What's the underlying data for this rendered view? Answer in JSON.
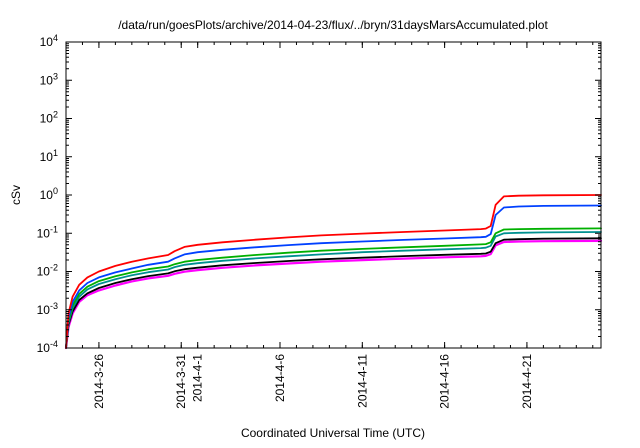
{
  "chart_data": {
    "type": "line",
    "title": "/data/run/goesPlots/archive/2014-04-23/flux/../bryn/31daysMarsAccumulated.plot",
    "xlabel": "Coordinated Universal Time (UTC)",
    "ylabel": "cSv",
    "y_scale": "log",
    "ylim_exponents": [
      -4,
      4
    ],
    "y_tick_base": "10",
    "y_tick_exponents": [
      4,
      3,
      2,
      1,
      0,
      -1,
      -2,
      -3,
      -4
    ],
    "x_domain_days": [
      0,
      32.5
    ],
    "x_ticks": [
      {
        "day": 2,
        "label": "2014-3-26"
      },
      {
        "day": 7,
        "label": "2014-3-31"
      },
      {
        "day": 8,
        "label": "2014-4-1"
      },
      {
        "day": 13,
        "label": "2014-4-6"
      },
      {
        "day": 18,
        "label": "2014-4-11"
      },
      {
        "day": 23,
        "label": "2014-4-16"
      },
      {
        "day": 28,
        "label": "2014-4-21"
      }
    ],
    "grid": false,
    "legend": "none",
    "x_days": [
      0,
      0.15,
      0.4,
      0.8,
      1.3,
      2,
      3,
      4,
      5,
      6.2,
      6.6,
      7.2,
      8,
      9.5,
      11.5,
      13.5,
      15.5,
      18,
      20.5,
      23,
      25.2,
      25.5,
      25.8,
      26.1,
      26.6,
      27.5,
      29,
      32.5
    ],
    "series": [
      {
        "name": "magenta-line",
        "color": "#ff00ff",
        "width": 2.2,
        "values": [
          0.0001,
          0.00035,
          0.0008,
          0.0016,
          0.0024,
          0.0032,
          0.0043,
          0.0055,
          0.0066,
          0.0077,
          0.0087,
          0.0099,
          0.0109,
          0.0125,
          0.0144,
          0.0162,
          0.018,
          0.0199,
          0.0217,
          0.0235,
          0.025,
          0.0255,
          0.0285,
          0.048,
          0.059,
          0.061,
          0.062,
          0.063
        ]
      },
      {
        "name": "black-line",
        "color": "#000000",
        "width": 1.8,
        "values": [
          0.0001,
          0.0004,
          0.0009,
          0.0018,
          0.0027,
          0.0037,
          0.005,
          0.0063,
          0.0076,
          0.0089,
          0.0101,
          0.0115,
          0.0126,
          0.0145,
          0.0167,
          0.0188,
          0.0209,
          0.023,
          0.0252,
          0.0273,
          0.029,
          0.0295,
          0.033,
          0.055,
          0.068,
          0.07,
          0.072,
          0.074
        ]
      },
      {
        "name": "teal-line",
        "color": "#009090",
        "width": 1.8,
        "values": [
          0.0001,
          0.00045,
          0.0011,
          0.0022,
          0.0034,
          0.0047,
          0.0063,
          0.008,
          0.0096,
          0.0113,
          0.013,
          0.015,
          0.0165,
          0.019,
          0.022,
          0.025,
          0.028,
          0.032,
          0.035,
          0.038,
          0.041,
          0.042,
          0.047,
          0.082,
          0.1,
          0.103,
          0.105,
          0.108
        ]
      },
      {
        "name": "green-line",
        "color": "#00b000",
        "width": 1.8,
        "values": [
          0.0001,
          0.0005,
          0.0013,
          0.0026,
          0.004,
          0.0056,
          0.0075,
          0.0095,
          0.0115,
          0.0135,
          0.0155,
          0.018,
          0.02,
          0.023,
          0.027,
          0.031,
          0.035,
          0.039,
          0.043,
          0.047,
          0.051,
          0.052,
          0.058,
          0.1,
          0.125,
          0.128,
          0.131,
          0.134
        ]
      },
      {
        "name": "blue-line",
        "color": "#0040ff",
        "width": 1.8,
        "values": [
          0.0001,
          0.0006,
          0.0016,
          0.0032,
          0.005,
          0.007,
          0.0095,
          0.012,
          0.015,
          0.018,
          0.022,
          0.028,
          0.032,
          0.037,
          0.043,
          0.049,
          0.055,
          0.061,
          0.067,
          0.073,
          0.079,
          0.081,
          0.095,
          0.3,
          0.47,
          0.5,
          0.52,
          0.53
        ]
      },
      {
        "name": "red-line",
        "color": "#ff0000",
        "width": 1.8,
        "values": [
          0.0001,
          0.0008,
          0.0022,
          0.0045,
          0.007,
          0.01,
          0.014,
          0.018,
          0.022,
          0.027,
          0.034,
          0.044,
          0.05,
          0.058,
          0.068,
          0.078,
          0.088,
          0.098,
          0.108,
          0.118,
          0.128,
          0.132,
          0.155,
          0.55,
          0.92,
          0.96,
          0.98,
          1.0
        ]
      }
    ]
  }
}
